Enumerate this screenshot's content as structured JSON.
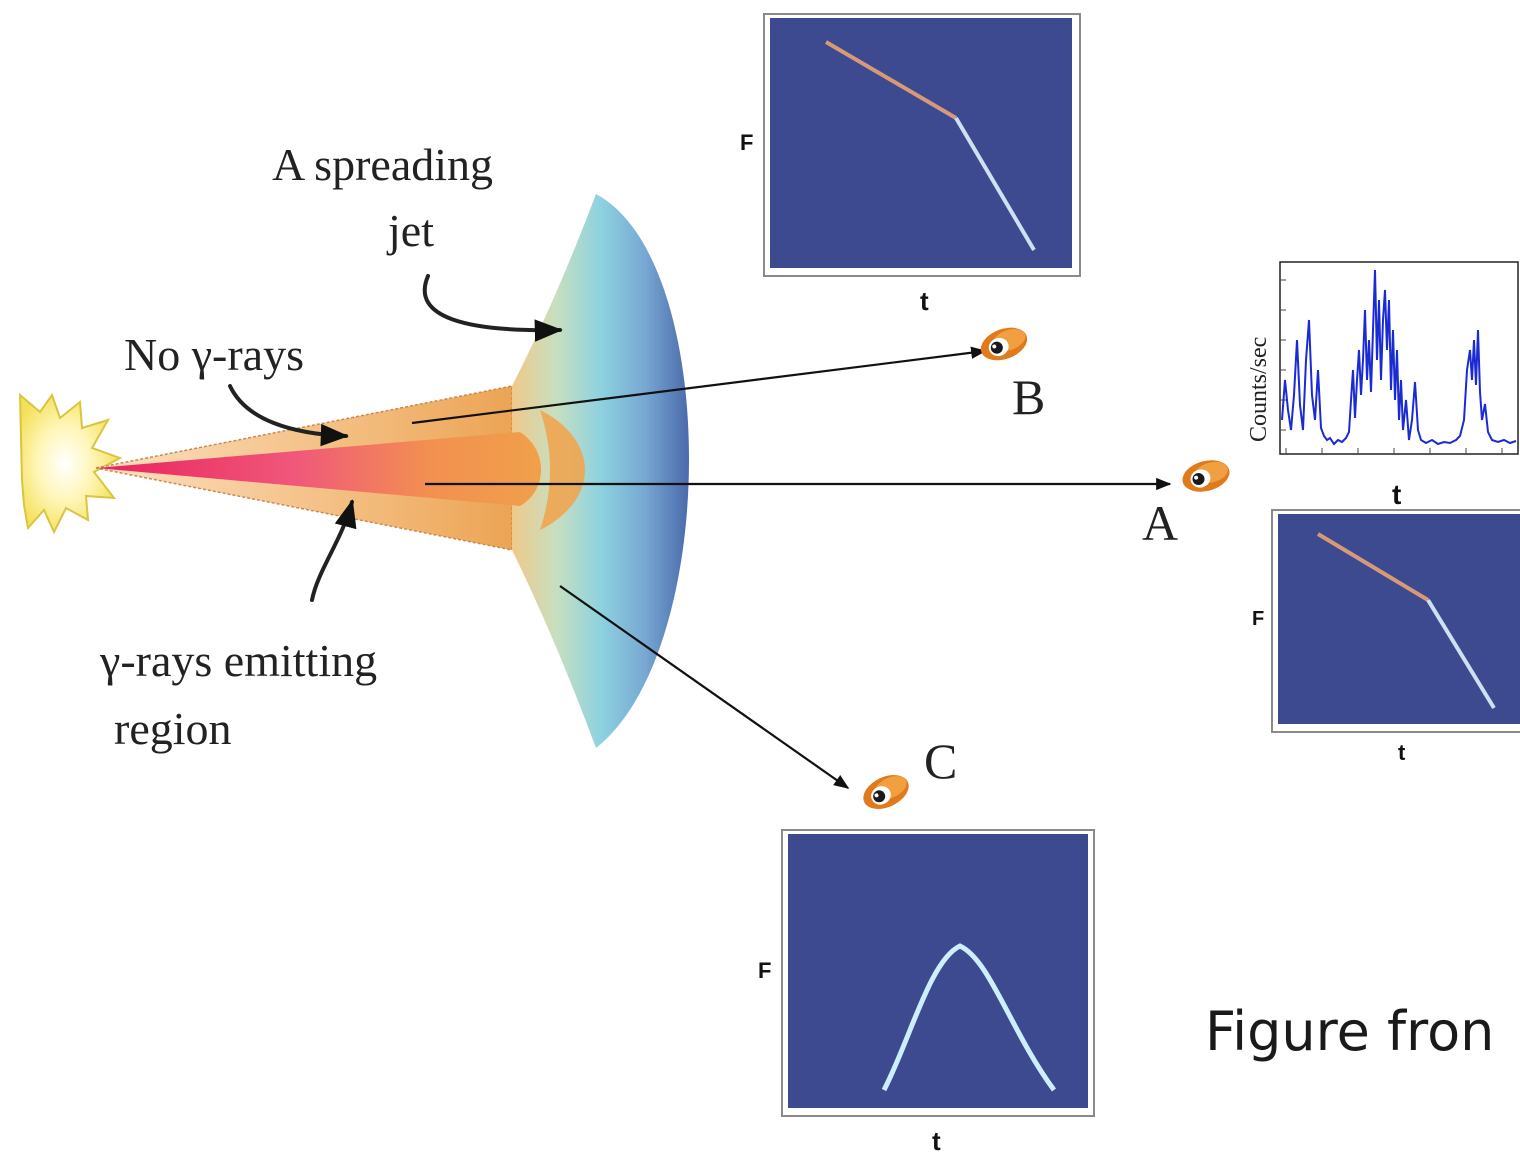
{
  "labels": {
    "spreading_jet_line1": "A spreading",
    "spreading_jet_line2": "jet",
    "no_gamma": "No γ-rays",
    "gamma_emitting_line1": "γ-rays emitting",
    "gamma_emitting_line2": "region",
    "observer_a": "A",
    "observer_b": "B",
    "observer_c": "C"
  },
  "plots": {
    "b": {
      "y_label": "F",
      "x_label": "t"
    },
    "a_lightcurve": {
      "y_label": "Counts/sec",
      "x_label": "t"
    },
    "a_afterglow": {
      "y_label": "F",
      "x_label": "t"
    },
    "c": {
      "y_label": "F",
      "x_label": "t"
    }
  },
  "caption": "Figure fron",
  "colors": {
    "plot_background": "#3d4a8f",
    "lightcurve": "#1a2bd6",
    "early_segment": "#d79a78",
    "late_segment": "#cfe0f2",
    "curve_c": "#cdeffb"
  }
}
